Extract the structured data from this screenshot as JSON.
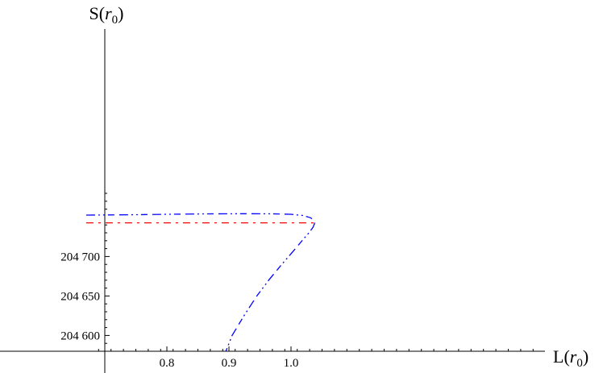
{
  "chart_data": {
    "type": "line",
    "title": "",
    "xlabel": "L(r0)",
    "ylabel": "S(r0)",
    "xlim": [
      0.69,
      1.075
    ],
    "ylim": [
      204580,
      204783
    ],
    "x_ticks": [
      {
        "value": 0.8,
        "label": "0.8"
      },
      {
        "value": 0.9,
        "label": "0.9"
      },
      {
        "value": 1.0,
        "label": "1.0"
      }
    ],
    "y_ticks": [
      {
        "value": 204600,
        "label": "204 600"
      },
      {
        "value": 204650,
        "label": "204 650"
      },
      {
        "value": 204700,
        "label": "204 700"
      }
    ],
    "grid": false,
    "series": [
      {
        "color": "#0000ff",
        "dash": "dashed-sparse",
        "points": [
          [
            0.67,
            204752.4
          ],
          [
            0.74,
            204752.9
          ],
          [
            0.8,
            204753.5
          ],
          [
            0.86,
            204754.0
          ],
          [
            0.92,
            204754.2
          ],
          [
            0.97,
            204754.1
          ],
          [
            1.0,
            204753.5
          ],
          [
            1.02,
            204751.8
          ],
          [
            1.032,
            204749.0
          ],
          [
            1.037,
            204745.0
          ],
          [
            1.038,
            204742.7
          ],
          [
            1.0375,
            204741.0
          ],
          [
            1.0355,
            204737.0
          ],
          [
            1.03,
            204731.0
          ],
          [
            1.02,
            204722.0
          ],
          [
            1.005,
            204708.0
          ],
          [
            0.985,
            204690.0
          ],
          [
            0.965,
            204671.0
          ],
          [
            0.945,
            204650.0
          ],
          [
            0.925,
            204626.0
          ],
          [
            0.905,
            204600.0
          ],
          [
            0.895,
            204580.0
          ]
        ]
      },
      {
        "color": "#ff0000",
        "dash": "dashed-sparse",
        "points": [
          [
            0.67,
            204742.7
          ],
          [
            0.8,
            204742.7
          ],
          [
            0.92,
            204742.7
          ],
          [
            1.038,
            204742.7
          ]
        ]
      }
    ]
  }
}
